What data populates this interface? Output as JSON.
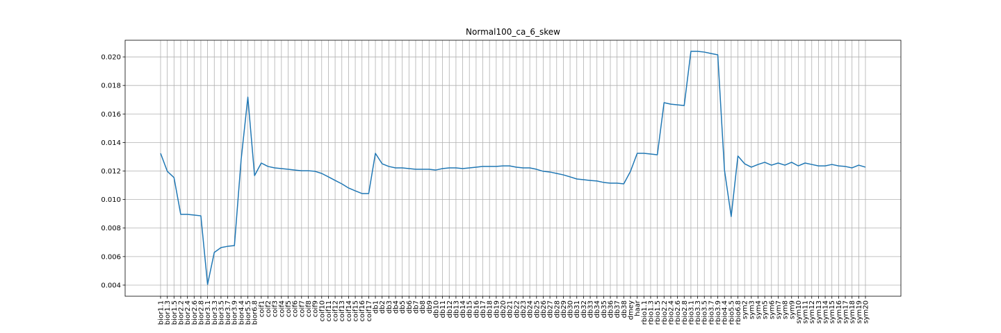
{
  "chart_data": {
    "type": "line",
    "title": "Normal100_ca_6_skew",
    "categories": [
      "bior1.1",
      "bior1.3",
      "bior1.5",
      "bior2.2",
      "bior2.4",
      "bior2.6",
      "bior2.8",
      "bior3.1",
      "bior3.3",
      "bior3.5",
      "bior3.7",
      "bior3.9",
      "bior4.4",
      "bior5.5",
      "bior6.8",
      "coif1",
      "coif2",
      "coif3",
      "coif4",
      "coif5",
      "coif6",
      "coif7",
      "coif8",
      "coif9",
      "coif10",
      "coif11",
      "coif12",
      "coif13",
      "coif14",
      "coif15",
      "coif16",
      "coif17",
      "db1",
      "db2",
      "db3",
      "db4",
      "db5",
      "db6",
      "db7",
      "db8",
      "db9",
      "db10",
      "db11",
      "db12",
      "db13",
      "db14",
      "db15",
      "db16",
      "db17",
      "db18",
      "db19",
      "db20",
      "db21",
      "db22",
      "db23",
      "db24",
      "db25",
      "db26",
      "db27",
      "db28",
      "db29",
      "db30",
      "db31",
      "db32",
      "db33",
      "db34",
      "db35",
      "db36",
      "db37",
      "db38",
      "dmey",
      "haar",
      "rbio1.1",
      "rbio1.3",
      "rbio1.5",
      "rbio2.2",
      "rbio2.4",
      "rbio2.6",
      "rbio2.8",
      "rbio3.1",
      "rbio3.3",
      "rbio3.5",
      "rbio3.7",
      "rbio3.9",
      "rbio4.4",
      "rbio5.5",
      "rbio6.8",
      "sym2",
      "sym3",
      "sym4",
      "sym5",
      "sym6",
      "sym7",
      "sym8",
      "sym9",
      "sym10",
      "sym11",
      "sym12",
      "sym13",
      "sym14",
      "sym15",
      "sym16",
      "sym17",
      "sym18",
      "sym19",
      "sym20"
    ],
    "series": [
      {
        "color": "#1f77b4",
        "values": [
          0.01324,
          0.01198,
          0.01154,
          0.00896,
          0.00896,
          0.00891,
          0.00886,
          0.00405,
          0.00629,
          0.00663,
          0.00672,
          0.00677,
          0.0128,
          0.01718,
          0.01168,
          0.01256,
          0.01232,
          0.01222,
          0.01217,
          0.01212,
          0.01207,
          0.01202,
          0.01202,
          0.01198,
          0.01183,
          0.01159,
          0.01134,
          0.0111,
          0.01081,
          0.01061,
          0.01042,
          0.01042,
          0.01324,
          0.01251,
          0.01232,
          0.01222,
          0.01222,
          0.01217,
          0.01212,
          0.01212,
          0.01212,
          0.01207,
          0.01217,
          0.01222,
          0.01222,
          0.01217,
          0.01222,
          0.01227,
          0.01232,
          0.01232,
          0.01232,
          0.01236,
          0.01236,
          0.01227,
          0.01222,
          0.01222,
          0.01212,
          0.01198,
          0.01193,
          0.01183,
          0.01173,
          0.01159,
          0.01144,
          0.01139,
          0.01134,
          0.0113,
          0.0112,
          0.01115,
          0.01115,
          0.0111,
          0.01198,
          0.01324,
          0.01324,
          0.01319,
          0.01314,
          0.01679,
          0.01669,
          0.01664,
          0.01659,
          0.02039,
          0.02039,
          0.02034,
          0.02024,
          0.02015,
          0.01207,
          0.00881,
          0.01305,
          0.01251,
          0.01227,
          0.01246,
          0.01261,
          0.01241,
          0.01256,
          0.01241,
          0.01261,
          0.01236,
          0.01256,
          0.01246,
          0.01236,
          0.01236,
          0.01246,
          0.01236,
          0.01232,
          0.01222,
          0.01241,
          0.01227
        ]
      }
    ],
    "ylim": [
      0.00322,
      0.02117
    ],
    "yticks": [
      0.004,
      0.006,
      0.008,
      {
        "value": 0.01,
        "label": "0.010"
      },
      0.012,
      0.014,
      0.016,
      0.018,
      {
        "value": 0.02,
        "label": "0.020"
      }
    ],
    "grid": true
  }
}
